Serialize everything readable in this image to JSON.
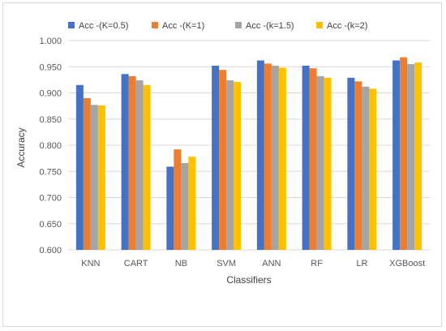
{
  "chart_data": {
    "type": "bar",
    "xlabel": "Classifiers",
    "ylabel": "Accuracy",
    "ylim": [
      0.6,
      1.0
    ],
    "yticks": [
      "0.600",
      "0.650",
      "0.700",
      "0.750",
      "0.800",
      "0.850",
      "0.900",
      "0.950",
      "1.000"
    ],
    "grid": true,
    "legend_position": "top",
    "categories": [
      "KNN",
      "CART",
      "NB",
      "SVM",
      "ANN",
      "RF",
      "LR",
      "XGBoost"
    ],
    "series": [
      {
        "name": "Acc -(K=0.5)",
        "color": "#4472C4",
        "values": [
          0.915,
          0.936,
          0.759,
          0.952,
          0.962,
          0.952,
          0.929,
          0.962
        ]
      },
      {
        "name": "Acc -(K=1)",
        "color": "#ED7D31",
        "values": [
          0.89,
          0.932,
          0.792,
          0.944,
          0.956,
          0.947,
          0.922,
          0.968
        ]
      },
      {
        "name": "Acc -(k=1.5)",
        "color": "#A5A5A5",
        "values": [
          0.877,
          0.924,
          0.766,
          0.924,
          0.952,
          0.932,
          0.912,
          0.955
        ]
      },
      {
        "name": "Acc -(k=2)",
        "color": "#FFC000",
        "values": [
          0.876,
          0.915,
          0.778,
          0.921,
          0.948,
          0.929,
          0.908,
          0.958
        ]
      }
    ]
  }
}
